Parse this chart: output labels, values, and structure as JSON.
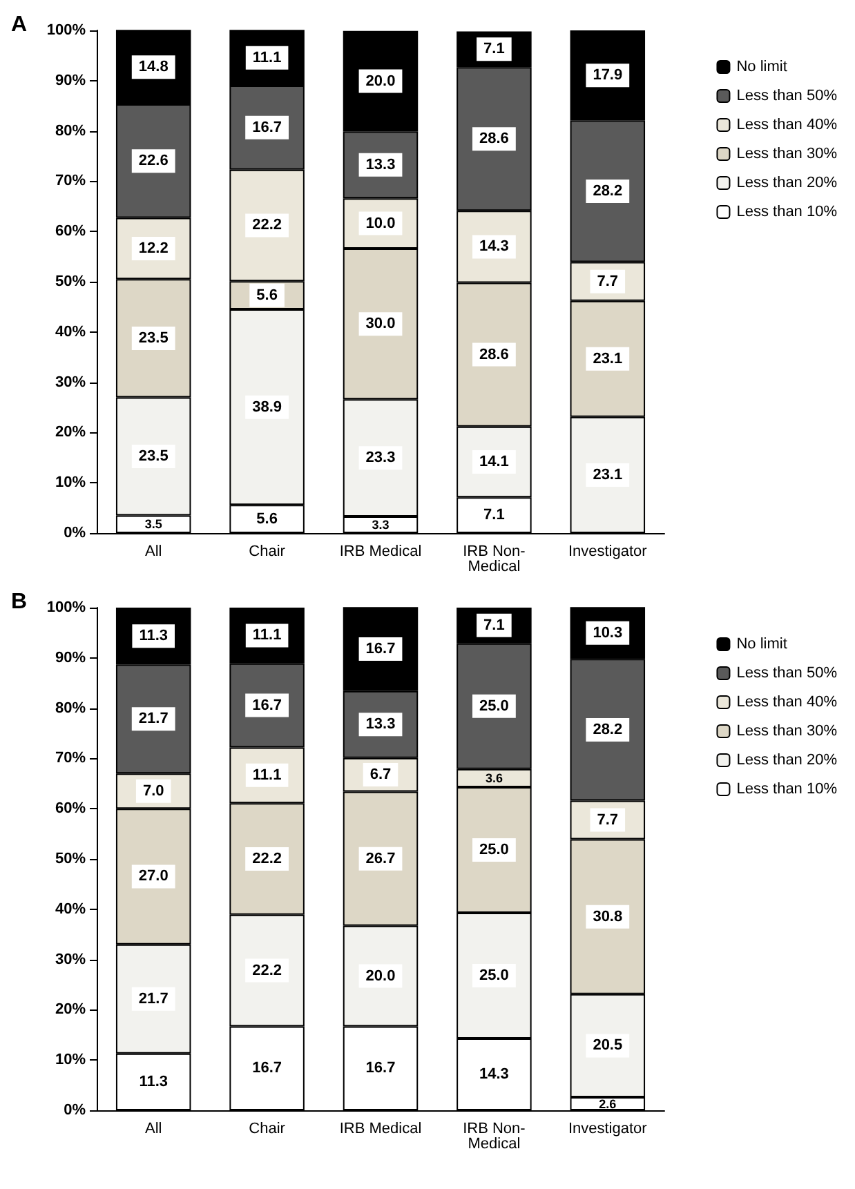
{
  "chart_data": [
    {
      "type": "bar",
      "title": "A",
      "stacked": true,
      "categories": [
        "All",
        "Chair",
        "IRB Medical",
        "IRB Non-Medical",
        "Investigator"
      ],
      "ylim": [
        0,
        100
      ],
      "yticks": [
        {
          "value": 0,
          "label": "0%"
        },
        {
          "value": 10,
          "label": "10%"
        },
        {
          "value": 20,
          "label": "20%"
        },
        {
          "value": 30,
          "label": "30%"
        },
        {
          "value": 40,
          "label": "40%"
        },
        {
          "value": 50,
          "label": "50%"
        },
        {
          "value": 60,
          "label": "60%"
        },
        {
          "value": 70,
          "label": "70%"
        },
        {
          "value": 80,
          "label": "80%"
        },
        {
          "value": 90,
          "label": "90%"
        },
        {
          "value": 100,
          "label": "100%"
        }
      ],
      "grid": false,
      "legend": "top right",
      "series": [
        {
          "name": "Less than 10%",
          "color": "#ffffff",
          "values": [
            3.5,
            5.6,
            3.3,
            7.1,
            null
          ],
          "value_labels": [
            "3.5",
            "5.6",
            "3.3",
            "7.1",
            null
          ]
        },
        {
          "name": "Less than 20%",
          "color": "#f2f2ee",
          "values": [
            23.5,
            38.9,
            23.3,
            14.1,
            23.1
          ],
          "value_labels": [
            "23.5",
            "38.9",
            "23.3",
            "14.1",
            "23.1"
          ]
        },
        {
          "name": "Less than 30%",
          "color": "#ddd7c6",
          "values": [
            23.5,
            5.6,
            30.0,
            28.6,
            23.1
          ],
          "value_labels": [
            "23.5",
            "5.6",
            "30.0",
            "28.6",
            "23.1"
          ]
        },
        {
          "name": "Less than 40%",
          "color": "#ebe7da",
          "values": [
            12.2,
            22.2,
            10.0,
            14.3,
            7.7
          ],
          "value_labels": [
            "12.2",
            "22.2",
            "10.0",
            "14.3",
            "7.7"
          ]
        },
        {
          "name": "Less than 50%",
          "color": "#5a5a5a",
          "values": [
            22.6,
            16.7,
            13.3,
            28.6,
            28.2
          ],
          "value_labels": [
            "22.6",
            "16.7",
            "13.3",
            "28.6",
            "28.2"
          ]
        },
        {
          "name": "No limit",
          "color": "#000000",
          "values": [
            14.8,
            11.1,
            20.0,
            7.1,
            17.9
          ],
          "value_labels": [
            "14.8",
            "11.1",
            "20.0",
            "7.1",
            "17.9"
          ]
        }
      ]
    },
    {
      "type": "bar",
      "title": "B",
      "stacked": true,
      "categories": [
        "All",
        "Chair",
        "IRB Medical",
        "IRB Non-Medical",
        "Investigator"
      ],
      "ylim": [
        0,
        100
      ],
      "yticks": [
        {
          "value": 0,
          "label": "0%"
        },
        {
          "value": 10,
          "label": "10%"
        },
        {
          "value": 20,
          "label": "20%"
        },
        {
          "value": 30,
          "label": "30%"
        },
        {
          "value": 40,
          "label": "40%"
        },
        {
          "value": 50,
          "label": "50%"
        },
        {
          "value": 60,
          "label": "60%"
        },
        {
          "value": 70,
          "label": "70%"
        },
        {
          "value": 80,
          "label": "80%"
        },
        {
          "value": 90,
          "label": "90%"
        },
        {
          "value": 100,
          "label": "100%"
        }
      ],
      "grid": false,
      "legend": "top right",
      "series": [
        {
          "name": "Less than 10%",
          "color": "#ffffff",
          "values": [
            11.3,
            16.7,
            16.7,
            14.3,
            2.6
          ],
          "value_labels": [
            "11.3",
            "16.7",
            "16.7",
            "14.3",
            "2.6"
          ]
        },
        {
          "name": "Less than 20%",
          "color": "#f2f2ee",
          "values": [
            21.7,
            22.2,
            20.0,
            25.0,
            20.5
          ],
          "value_labels": [
            "21.7",
            "22.2",
            "20.0",
            "25.0",
            "20.5"
          ]
        },
        {
          "name": "Less than 30%",
          "color": "#ddd7c6",
          "values": [
            27.0,
            22.2,
            26.7,
            25.0,
            30.8
          ],
          "value_labels": [
            "27.0",
            "22.2",
            "26.7",
            "25.0",
            "30.8"
          ]
        },
        {
          "name": "Less than 40%",
          "color": "#ebe7da",
          "values": [
            7.0,
            11.1,
            6.7,
            3.6,
            7.7
          ],
          "value_labels": [
            "7.0",
            "11.1",
            "6.7",
            "3.6",
            "7.7"
          ]
        },
        {
          "name": "Less than 50%",
          "color": "#5a5a5a",
          "values": [
            21.7,
            16.7,
            13.3,
            25.0,
            28.2
          ],
          "value_labels": [
            "21.7",
            "16.7",
            "13.3",
            "25.0",
            "28.2"
          ]
        },
        {
          "name": "No limit",
          "color": "#000000",
          "values": [
            11.3,
            11.1,
            16.7,
            7.1,
            10.3
          ],
          "value_labels": [
            "11.3",
            "11.1",
            "16.7",
            "7.1",
            "10.3"
          ]
        }
      ]
    }
  ]
}
